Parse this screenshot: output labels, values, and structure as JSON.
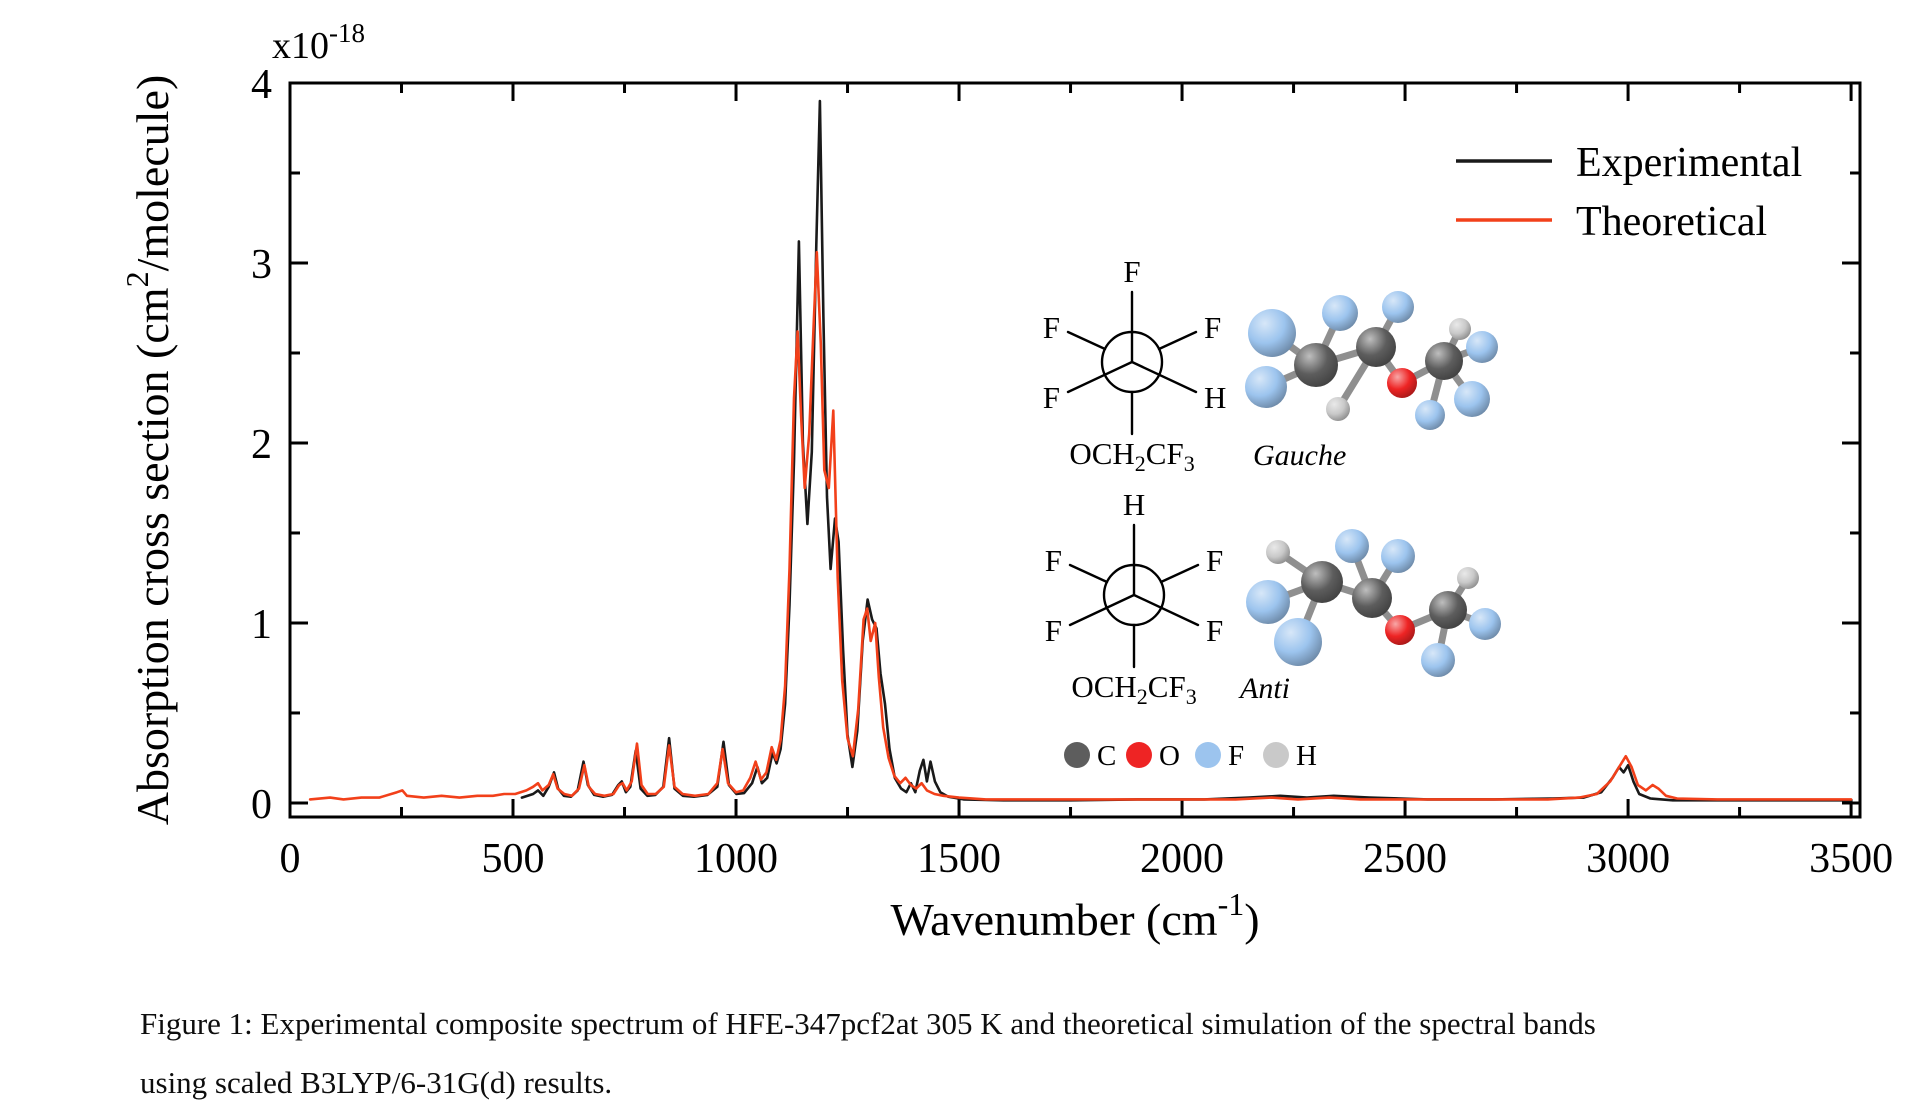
{
  "chart_data": {
    "type": "line",
    "title": "",
    "xlabel_parts": [
      "Wavenumber (cm",
      "-1",
      ")"
    ],
    "ylabel_parts": [
      "Absorption cross section (cm",
      "2",
      "/molecule)"
    ],
    "offset_parts": [
      "x10",
      "-18"
    ],
    "xlim": [
      0,
      3520
    ],
    "ylim": [
      -0.078,
      4
    ],
    "xticks": [
      0,
      500,
      1000,
      1500,
      2000,
      2500,
      3000,
      3500
    ],
    "xminor_step": 250,
    "yticks": [
      0,
      1,
      2,
      3,
      4
    ],
    "yminor_step": 0.5,
    "grid": false,
    "legend_position": "upper right",
    "legend": [
      {
        "name": "Experimental",
        "color": "#1a1a1a"
      },
      {
        "name": "Theoretical",
        "color": "#f2401a"
      }
    ],
    "units_note": "y = absorption cross section x10^-18 cm2/molecule; x = wavenumber cm^-1",
    "series": [
      {
        "name": "Experimental",
        "color": "#1a1a1a",
        "segments": [
          [
            [
              520,
              0.03
            ],
            [
              545,
              0.05
            ],
            [
              556,
              0.07
            ],
            [
              568,
              0.04
            ],
            [
              580,
              0.09
            ],
            [
              592,
              0.17
            ],
            [
              601,
              0.08
            ],
            [
              614,
              0.04
            ],
            [
              630,
              0.035
            ],
            [
              645,
              0.07
            ],
            [
              658,
              0.23
            ],
            [
              668,
              0.1
            ],
            [
              682,
              0.045
            ],
            [
              702,
              0.035
            ],
            [
              722,
              0.045
            ],
            [
              736,
              0.1
            ],
            [
              744,
              0.12
            ],
            [
              753,
              0.06
            ],
            [
              763,
              0.09
            ],
            [
              775,
              0.29
            ],
            [
              786,
              0.08
            ],
            [
              801,
              0.04
            ],
            [
              819,
              0.045
            ],
            [
              837,
              0.09
            ],
            [
              850,
              0.36
            ],
            [
              862,
              0.08
            ],
            [
              881,
              0.04
            ],
            [
              906,
              0.035
            ],
            [
              936,
              0.045
            ],
            [
              958,
              0.09
            ],
            [
              972,
              0.34
            ],
            [
              984,
              0.1
            ],
            [
              1001,
              0.05
            ],
            [
              1018,
              0.055
            ],
            [
              1036,
              0.11
            ],
            [
              1048,
              0.2
            ],
            [
              1058,
              0.11
            ],
            [
              1070,
              0.14
            ],
            [
              1082,
              0.28
            ],
            [
              1091,
              0.22
            ],
            [
              1100,
              0.3
            ],
            [
              1110,
              0.55
            ],
            [
              1120,
              1.1
            ],
            [
              1130,
              1.9
            ],
            [
              1141,
              3.12
            ],
            [
              1150,
              2.0
            ],
            [
              1160,
              1.55
            ],
            [
              1170,
              1.95
            ],
            [
              1180,
              3.1
            ],
            [
              1188,
              3.9
            ],
            [
              1196,
              2.7
            ],
            [
              1204,
              1.7
            ],
            [
              1212,
              1.3
            ],
            [
              1222,
              1.58
            ],
            [
              1230,
              1.45
            ],
            [
              1240,
              0.85
            ],
            [
              1250,
              0.38
            ],
            [
              1261,
              0.2
            ],
            [
              1272,
              0.4
            ],
            [
              1284,
              0.9
            ],
            [
              1295,
              1.13
            ],
            [
              1305,
              1.02
            ],
            [
              1315,
              0.97
            ],
            [
              1324,
              0.72
            ],
            [
              1334,
              0.55
            ],
            [
              1344,
              0.3
            ],
            [
              1356,
              0.14
            ],
            [
              1370,
              0.08
            ],
            [
              1382,
              0.06
            ],
            [
              1392,
              0.11
            ],
            [
              1402,
              0.06
            ],
            [
              1412,
              0.18
            ],
            [
              1420,
              0.24
            ],
            [
              1428,
              0.12
            ],
            [
              1436,
              0.23
            ],
            [
              1446,
              0.12
            ],
            [
              1458,
              0.06
            ],
            [
              1476,
              0.035
            ],
            [
              1510,
              0.02
            ],
            [
              1600,
              0.015
            ],
            [
              1750,
              0.015
            ],
            [
              1900,
              0.02
            ],
            [
              2050,
              0.02
            ],
            [
              2150,
              0.03
            ],
            [
              2220,
              0.04
            ],
            [
              2280,
              0.03
            ],
            [
              2340,
              0.04
            ],
            [
              2420,
              0.03
            ],
            [
              2550,
              0.02
            ],
            [
              2700,
              0.02
            ],
            [
              2830,
              0.025
            ],
            [
              2900,
              0.03
            ],
            [
              2940,
              0.06
            ],
            [
              2965,
              0.14
            ],
            [
              2980,
              0.2
            ],
            [
              2990,
              0.17
            ],
            [
              3000,
              0.21
            ],
            [
              3012,
              0.12
            ],
            [
              3025,
              0.05
            ],
            [
              3050,
              0.025
            ],
            [
              3100,
              0.015
            ],
            [
              3250,
              0.015
            ],
            [
              3500,
              0.015
            ]
          ]
        ]
      },
      {
        "name": "Theoretical",
        "color": "#f2401a",
        "segments": [
          [
            [
              45,
              0.02
            ],
            [
              90,
              0.03
            ],
            [
              120,
              0.02
            ],
            [
              160,
              0.03
            ],
            [
              200,
              0.03
            ],
            [
              240,
              0.06
            ],
            [
              252,
              0.07
            ],
            [
              262,
              0.04
            ],
            [
              300,
              0.03
            ],
            [
              340,
              0.04
            ],
            [
              380,
              0.03
            ],
            [
              420,
              0.04
            ],
            [
              455,
              0.04
            ],
            [
              480,
              0.05
            ],
            [
              505,
              0.05
            ],
            [
              530,
              0.07
            ],
            [
              545,
              0.09
            ],
            [
              556,
              0.11
            ],
            [
              566,
              0.07
            ],
            [
              580,
              0.1
            ],
            [
              590,
              0.16
            ],
            [
              600,
              0.08
            ],
            [
              615,
              0.05
            ],
            [
              632,
              0.04
            ],
            [
              648,
              0.08
            ],
            [
              660,
              0.21
            ],
            [
              670,
              0.09
            ],
            [
              684,
              0.05
            ],
            [
              705,
              0.04
            ],
            [
              725,
              0.05
            ],
            [
              738,
              0.1
            ],
            [
              746,
              0.11
            ],
            [
              755,
              0.07
            ],
            [
              766,
              0.12
            ],
            [
              778,
              0.33
            ],
            [
              788,
              0.1
            ],
            [
              802,
              0.05
            ],
            [
              820,
              0.05
            ],
            [
              838,
              0.09
            ],
            [
              850,
              0.32
            ],
            [
              862,
              0.09
            ],
            [
              880,
              0.05
            ],
            [
              908,
              0.04
            ],
            [
              938,
              0.05
            ],
            [
              958,
              0.11
            ],
            [
              970,
              0.3
            ],
            [
              982,
              0.11
            ],
            [
              1000,
              0.06
            ],
            [
              1016,
              0.07
            ],
            [
              1032,
              0.14
            ],
            [
              1044,
              0.23
            ],
            [
              1056,
              0.13
            ],
            [
              1068,
              0.17
            ],
            [
              1080,
              0.31
            ],
            [
              1090,
              0.24
            ],
            [
              1100,
              0.35
            ],
            [
              1110,
              0.65
            ],
            [
              1120,
              1.3
            ],
            [
              1130,
              2.25
            ],
            [
              1138,
              2.62
            ],
            [
              1146,
              2.15
            ],
            [
              1154,
              1.75
            ],
            [
              1164,
              2.05
            ],
            [
              1174,
              2.65
            ],
            [
              1181,
              3.06
            ],
            [
              1190,
              2.55
            ],
            [
              1198,
              1.85
            ],
            [
              1208,
              1.75
            ],
            [
              1218,
              2.18
            ],
            [
              1228,
              1.25
            ],
            [
              1238,
              0.68
            ],
            [
              1250,
              0.36
            ],
            [
              1262,
              0.26
            ],
            [
              1274,
              0.52
            ],
            [
              1286,
              1.02
            ],
            [
              1294,
              1.08
            ],
            [
              1302,
              0.9
            ],
            [
              1312,
              1.0
            ],
            [
              1320,
              0.7
            ],
            [
              1330,
              0.42
            ],
            [
              1342,
              0.25
            ],
            [
              1355,
              0.15
            ],
            [
              1368,
              0.11
            ],
            [
              1380,
              0.14
            ],
            [
              1392,
              0.1
            ],
            [
              1404,
              0.08
            ],
            [
              1416,
              0.11
            ],
            [
              1428,
              0.07
            ],
            [
              1445,
              0.05
            ],
            [
              1465,
              0.04
            ],
            [
              1500,
              0.03
            ],
            [
              1560,
              0.02
            ],
            [
              1700,
              0.02
            ],
            [
              1850,
              0.02
            ],
            [
              2000,
              0.02
            ],
            [
              2120,
              0.02
            ],
            [
              2200,
              0.03
            ],
            [
              2260,
              0.02
            ],
            [
              2330,
              0.03
            ],
            [
              2400,
              0.02
            ],
            [
              2550,
              0.02
            ],
            [
              2700,
              0.02
            ],
            [
              2820,
              0.02
            ],
            [
              2890,
              0.03
            ],
            [
              2930,
              0.05
            ],
            [
              2960,
              0.12
            ],
            [
              2980,
              0.2
            ],
            [
              2995,
              0.26
            ],
            [
              3008,
              0.2
            ],
            [
              3022,
              0.1
            ],
            [
              3040,
              0.07
            ],
            [
              3055,
              0.1
            ],
            [
              3068,
              0.08
            ],
            [
              3085,
              0.04
            ],
            [
              3110,
              0.025
            ],
            [
              3200,
              0.02
            ],
            [
              3350,
              0.02
            ],
            [
              3500,
              0.02
            ]
          ]
        ]
      }
    ]
  },
  "molecules": {
    "gauche": {
      "label": "Gauche",
      "newman": {
        "front_top": "F",
        "front_lower_left": "F",
        "front_lower_right": "H",
        "rear_upper_left": "F",
        "rear_upper_right": "F",
        "rear_bottom_parts": [
          "OCH",
          "2",
          "CF",
          "3"
        ]
      }
    },
    "anti": {
      "label": "Anti",
      "newman": {
        "front_top": "H",
        "front_lower_left": "F",
        "front_lower_right": "F",
        "rear_upper_left": "F",
        "rear_upper_right": "F",
        "rear_bottom_parts": [
          "OCH",
          "2",
          "CF",
          "3"
        ]
      }
    },
    "atom_key": [
      {
        "symbol": "C",
        "color": "#5d5d5d"
      },
      {
        "symbol": "O",
        "color": "#ee2424"
      },
      {
        "symbol": "F",
        "color": "#9cc4ee"
      },
      {
        "symbol": "H",
        "color": "#c9c9c9"
      }
    ]
  },
  "caption": {
    "line1": "Figure 1: Experimental composite spectrum of HFE-347pcf2at 305 K and theoretical simulation of the spectral bands",
    "line2": "using scaled B3LYP/6-31G(d) results."
  }
}
